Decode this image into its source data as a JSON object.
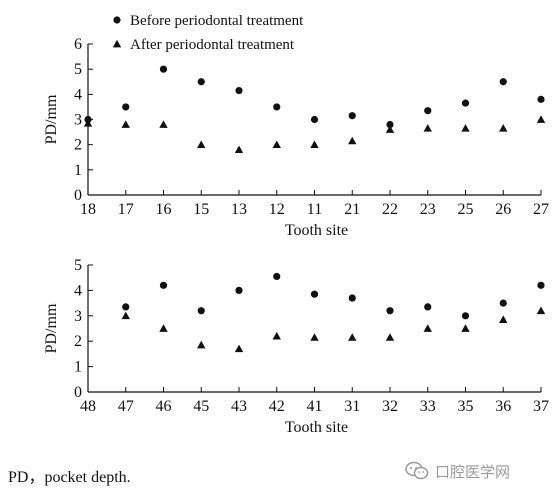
{
  "chart_data": [
    {
      "type": "scatter",
      "title": "",
      "xlabel": "Tooth site",
      "ylabel": "PD/mm",
      "categories": [
        "18",
        "17",
        "16",
        "15",
        "13",
        "12",
        "11",
        "21",
        "22",
        "23",
        "25",
        "26",
        "27"
      ],
      "ylim": [
        0,
        6
      ],
      "yticks": [
        0,
        1,
        2,
        3,
        4,
        5,
        6
      ],
      "grid": false,
      "legend": "top-left",
      "series": [
        {
          "name": "Before periodontal treatment",
          "marker": "circle",
          "values": [
            3.0,
            3.5,
            5.0,
            4.5,
            4.15,
            3.5,
            3.0,
            3.15,
            2.8,
            3.35,
            3.65,
            4.5,
            3.8
          ]
        },
        {
          "name": "After periodontal treatment",
          "marker": "triangle",
          "values": [
            2.85,
            2.8,
            2.8,
            2.0,
            1.8,
            2.0,
            2.0,
            2.15,
            2.6,
            2.65,
            2.65,
            2.65,
            3.0
          ]
        }
      ]
    },
    {
      "type": "scatter",
      "title": "",
      "xlabel": "Tooth site",
      "ylabel": "PD/mm",
      "categories": [
        "48",
        "47",
        "46",
        "45",
        "43",
        "42",
        "41",
        "31",
        "32",
        "33",
        "35",
        "36",
        "37"
      ],
      "ylim": [
        0,
        5
      ],
      "yticks": [
        0,
        1,
        2,
        3,
        4,
        5
      ],
      "grid": false,
      "legend": "none",
      "series": [
        {
          "name": "Before periodontal treatment",
          "marker": "circle",
          "values": [
            null,
            3.35,
            4.2,
            3.2,
            4.0,
            4.55,
            3.85,
            3.7,
            3.2,
            3.35,
            3.0,
            3.5,
            4.2
          ]
        },
        {
          "name": "After periodontal treatment",
          "marker": "triangle",
          "values": [
            null,
            3.0,
            2.5,
            1.85,
            1.7,
            2.2,
            2.15,
            2.15,
            2.15,
            2.5,
            2.5,
            2.85,
            3.2
          ]
        }
      ]
    }
  ],
  "caption": "PD，pocket depth.",
  "watermark": {
    "text": "口腔医学网",
    "icon": "wechat-icon"
  }
}
